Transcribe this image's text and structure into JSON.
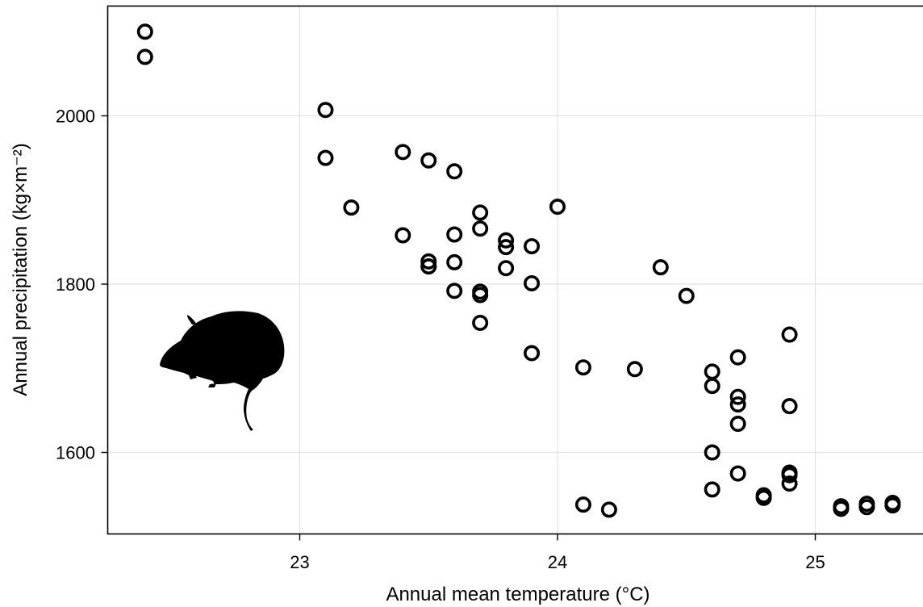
{
  "chart_data": {
    "type": "scatter",
    "title": "",
    "xlabel": "Annual mean temperature (°C)",
    "ylabel": "Annual precipitation (kg×m⁻²)",
    "xlim": [
      22.25,
      25.42
    ],
    "ylim": [
      1505,
      2135
    ],
    "x_ticks": [
      23,
      24,
      25
    ],
    "x_tick_labels": [
      "23",
      "24",
      "25"
    ],
    "y_ticks": [
      1600,
      1800,
      2000
    ],
    "y_tick_labels": [
      "1600",
      "1800",
      "2000"
    ],
    "grid": true,
    "legend": "none",
    "marker": "open-circle",
    "marker_color": "#000000",
    "icon": "rodent-silhouette-icon",
    "series": [
      {
        "x": [
          22.4,
          22.4,
          23.1,
          23.1,
          23.2,
          23.4,
          23.4,
          23.5,
          23.5,
          23.5,
          23.5,
          23.6,
          23.6,
          23.6,
          23.6,
          23.7,
          23.7,
          23.7,
          23.7,
          23.7,
          23.8,
          23.8,
          23.8,
          23.9,
          23.9,
          23.9,
          24.0,
          24.1,
          24.1,
          24.2,
          24.3,
          24.4,
          24.5,
          24.6,
          24.6,
          24.6,
          24.6,
          24.7,
          24.7,
          24.7,
          24.7,
          24.7,
          24.8,
          24.8,
          24.9,
          24.9,
          24.9,
          24.9,
          24.9,
          25.1,
          25.1,
          25.2,
          25.2,
          25.3,
          25.3
        ],
        "y": [
          2100,
          2070,
          2007,
          1950,
          1891,
          1957,
          1858,
          1947,
          1827,
          1821,
          1821,
          1934,
          1859,
          1826,
          1792,
          1885,
          1866,
          1791,
          1787,
          1754,
          1852,
          1844,
          1819,
          1845,
          1801,
          1718,
          1892,
          1701,
          1538,
          1532,
          1699,
          1820,
          1786,
          1696,
          1679,
          1600,
          1556,
          1713,
          1666,
          1657,
          1634,
          1575,
          1549,
          1546,
          1740,
          1655,
          1576,
          1573,
          1563,
          1536,
          1533,
          1539,
          1535,
          1540,
          1537
        ]
      }
    ]
  }
}
